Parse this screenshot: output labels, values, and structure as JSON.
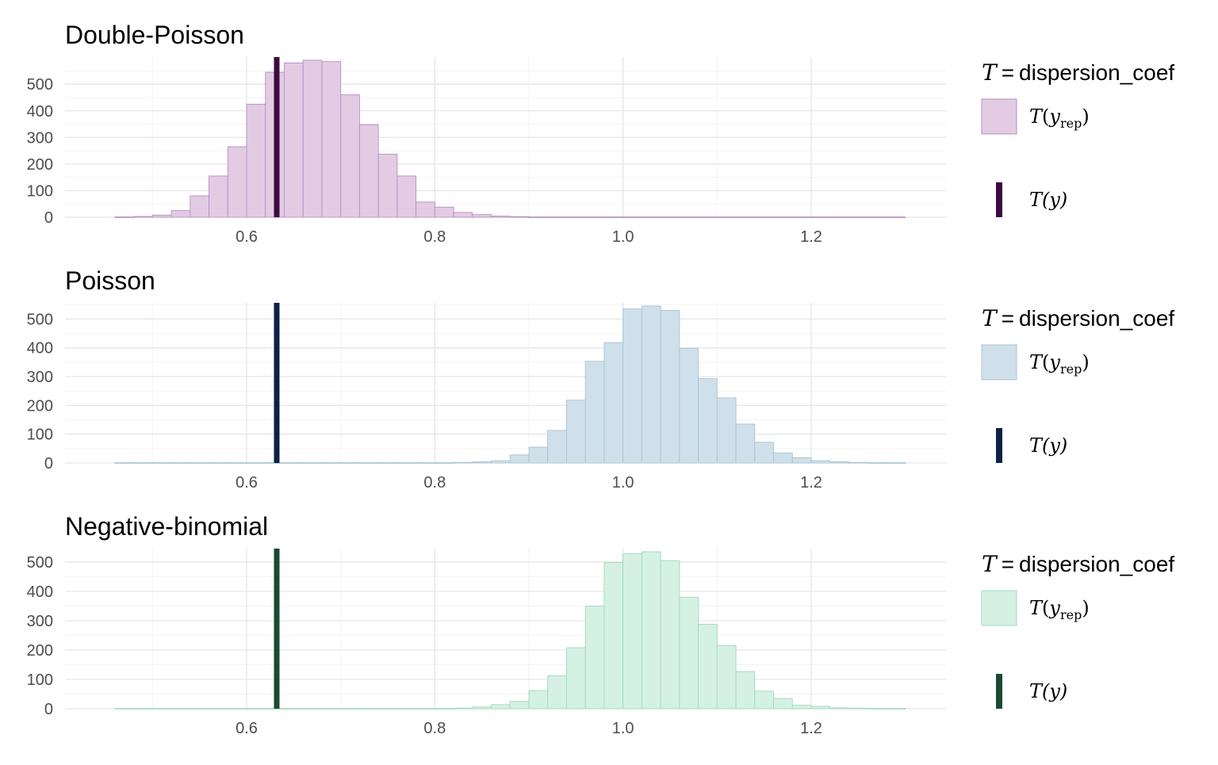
{
  "chart_data": [
    {
      "type": "bar",
      "title": "Double-Poisson",
      "xlabel": "",
      "ylabel": "",
      "xlim": [
        0.441,
        1.296
      ],
      "ylim": [
        0,
        580
      ],
      "x_ticks": [
        0.6,
        0.8,
        1.0,
        1.2
      ],
      "x_tick_labels": [
        "0.6",
        "0.8",
        "1.0",
        "1.2"
      ],
      "y_ticks": [
        0,
        100,
        200,
        300,
        400,
        500
      ],
      "y_tick_labels": [
        "0",
        "100",
        "200",
        "300",
        "400",
        "500"
      ],
      "grid": true,
      "bin_start": 0.46,
      "bin_width": 0.02,
      "counts": [
        1,
        3,
        8,
        25,
        80,
        155,
        265,
        425,
        545,
        580,
        590,
        585,
        460,
        348,
        237,
        155,
        57,
        38,
        18,
        10,
        4,
        2,
        1,
        1,
        1,
        1,
        1,
        1,
        1,
        1,
        1,
        1,
        1,
        1,
        1,
        1,
        1,
        1,
        1,
        1,
        1,
        1
      ],
      "observed_x": 0.632,
      "fill_color": "#e3cbe4",
      "edge_color": "#b88ec3",
      "observed_color": "#3d0a3f",
      "legend": {
        "title_var": "T",
        "title_eq": "=",
        "title_text": "dispersion_coef",
        "rep_label_T": "T",
        "rep_label_open": "(",
        "rep_label_y": "y",
        "rep_label_sub": "rep",
        "rep_label_close": ")",
        "obs_label": "T(y)",
        "placement": "right"
      }
    },
    {
      "type": "bar",
      "title": "Poisson",
      "xlabel": "",
      "ylabel": "",
      "xlim": [
        0.441,
        1.296
      ],
      "ylim": [
        0,
        550
      ],
      "x_ticks": [
        0.6,
        0.8,
        1.0,
        1.2
      ],
      "x_tick_labels": [
        "0.6",
        "0.8",
        "1.0",
        "1.2"
      ],
      "y_ticks": [
        0,
        100,
        200,
        300,
        400,
        500
      ],
      "y_tick_labels": [
        "0",
        "100",
        "200",
        "300",
        "400",
        "500"
      ],
      "grid": true,
      "bin_start": 0.46,
      "bin_width": 0.02,
      "counts": [
        1,
        1,
        1,
        1,
        1,
        1,
        1,
        1,
        1,
        1,
        1,
        1,
        1,
        1,
        1,
        1,
        1,
        1,
        2,
        4,
        8,
        28,
        55,
        113,
        218,
        353,
        418,
        535,
        545,
        530,
        398,
        293,
        226,
        135,
        72,
        35,
        18,
        8,
        4,
        2,
        1,
        1
      ],
      "observed_x": 0.632,
      "fill_color": "#cfe0ea",
      "edge_color": "#a9c4d4",
      "observed_color": "#0e2146",
      "legend": {
        "title_var": "T",
        "title_eq": "=",
        "title_text": "dispersion_coef",
        "rep_label_T": "T",
        "rep_label_open": "(",
        "rep_label_y": "y",
        "rep_label_sub": "rep",
        "rep_label_close": ")",
        "obs_label": "T(y)",
        "placement": "right"
      }
    },
    {
      "type": "bar",
      "title": "Negative-binomial",
      "xlabel": "",
      "ylabel": "",
      "xlim": [
        0.441,
        1.296
      ],
      "ylim": [
        0,
        535
      ],
      "x_ticks": [
        0.6,
        0.8,
        1.0,
        1.2
      ],
      "x_tick_labels": [
        "0.6",
        "0.8",
        "1.0",
        "1.2"
      ],
      "y_ticks": [
        0,
        100,
        200,
        300,
        400,
        500
      ],
      "y_tick_labels": [
        "0",
        "100",
        "200",
        "300",
        "400",
        "500"
      ],
      "grid": true,
      "bin_start": 0.46,
      "bin_width": 0.02,
      "counts": [
        1,
        1,
        1,
        1,
        1,
        1,
        1,
        1,
        1,
        1,
        1,
        1,
        1,
        1,
        1,
        1,
        1,
        1,
        2,
        6,
        14,
        25,
        62,
        113,
        208,
        350,
        498,
        528,
        535,
        505,
        380,
        288,
        215,
        127,
        60,
        35,
        12,
        8,
        3,
        2,
        1,
        1
      ],
      "observed_x": 0.632,
      "fill_color": "#d5f1e3",
      "edge_color": "#a4d8bf",
      "observed_color": "#1a4a32",
      "legend": {
        "title_var": "T",
        "title_eq": "=",
        "title_text": "dispersion_coef",
        "rep_label_T": "T",
        "rep_label_open": "(",
        "rep_label_y": "y",
        "rep_label_sub": "rep",
        "rep_label_close": ")",
        "obs_label": "T(y)",
        "placement": "right"
      }
    }
  ]
}
